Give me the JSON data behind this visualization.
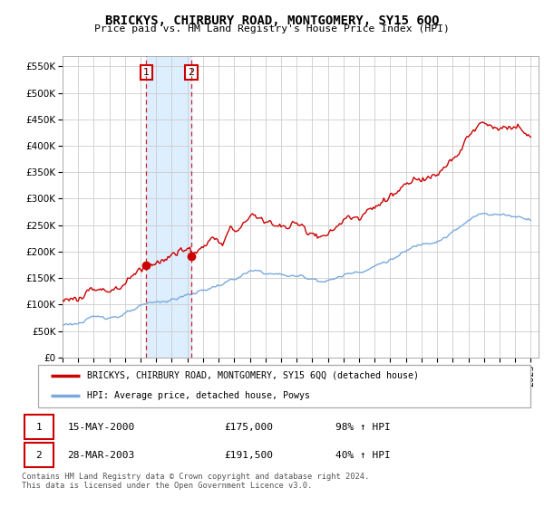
{
  "title": "BRICKYS, CHIRBURY ROAD, MONTGOMERY, SY15 6QQ",
  "subtitle": "Price paid vs. HM Land Registry's House Price Index (HPI)",
  "legend_line1": "BRICKYS, CHIRBURY ROAD, MONTGOMERY, SY15 6QQ (detached house)",
  "legend_line2": "HPI: Average price, detached house, Powys",
  "sale1_date": "15-MAY-2000",
  "sale1_price": "£175,000",
  "sale1_hpi": "98% ↑ HPI",
  "sale2_date": "28-MAR-2003",
  "sale2_price": "£191,500",
  "sale2_hpi": "40% ↑ HPI",
  "footnote": "Contains HM Land Registry data © Crown copyright and database right 2024.\nThis data is licensed under the Open Government Licence v3.0.",
  "sale1_year": 2000.37,
  "sale2_year": 2003.24,
  "sale1_value": 175000,
  "sale2_value": 191500,
  "property_color": "#cc0000",
  "hpi_color": "#7aaadd",
  "highlight_color": "#ddeeff",
  "marker_box_color": "#cc0000",
  "ylim_min": 0,
  "ylim_max": 570000,
  "xlim_min": 1995,
  "xlim_max": 2025.5,
  "xticks": [
    1995,
    1996,
    1997,
    1998,
    1999,
    2000,
    2001,
    2002,
    2003,
    2004,
    2005,
    2006,
    2007,
    2008,
    2009,
    2010,
    2011,
    2012,
    2013,
    2014,
    2015,
    2016,
    2017,
    2018,
    2019,
    2020,
    2021,
    2022,
    2023,
    2024,
    2025
  ],
  "yticks": [
    0,
    50000,
    100000,
    150000,
    200000,
    250000,
    300000,
    350000,
    400000,
    450000,
    500000,
    550000
  ],
  "ytick_labels": [
    "£0",
    "£50K",
    "£100K",
    "£150K",
    "£200K",
    "£250K",
    "£300K",
    "£350K",
    "£400K",
    "£450K",
    "£500K",
    "£550K"
  ],
  "background_color": "#ffffff",
  "grid_color": "#cccccc"
}
